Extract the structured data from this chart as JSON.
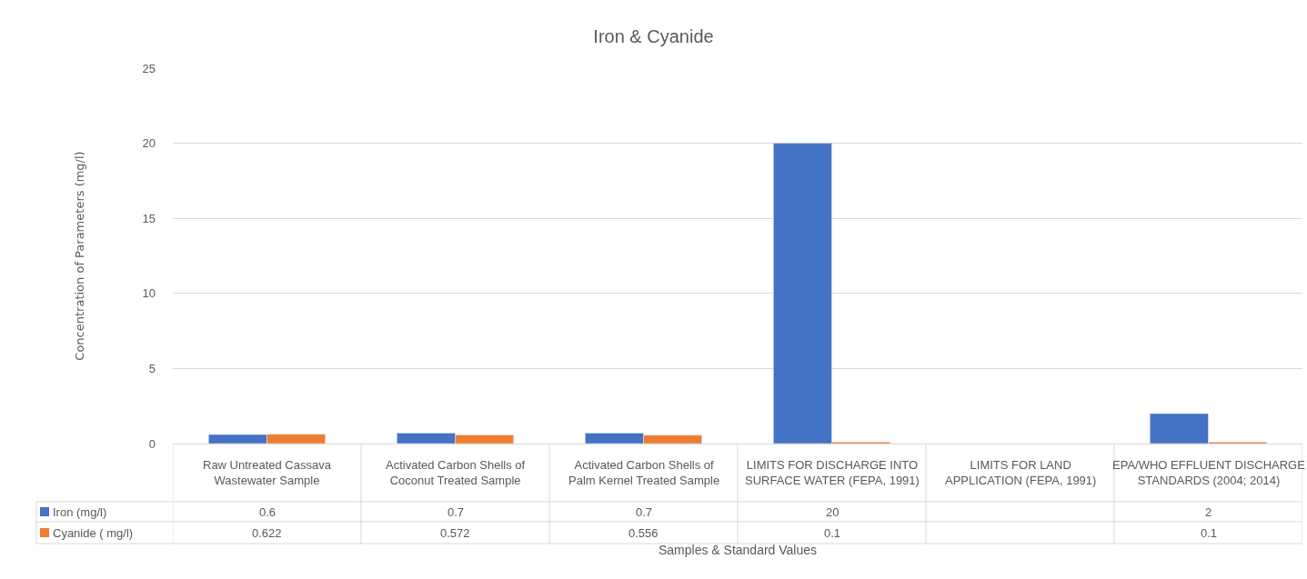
{
  "chart_data": {
    "type": "bar",
    "title": "Iron & Cyanide",
    "xlabel": "Samples & Standard Values",
    "ylabel": "Concentration of Parameters (mg/l)",
    "categories": [
      "Raw Untreated Cassava Wastewater Sample",
      "Activated Carbon Shells of Coconut Treated Sample",
      "Activated Carbon Shells of Palm Kernel Treated Sample",
      "LIMITS FOR DISCHARGE INTO SURFACE WATER (FEPA, 1991)",
      "LIMITS FOR LAND APPLICATION (FEPA, 1991)",
      "EPA/WHO EFFLUENT DISCHARGE STANDARDS (2004; 2014)"
    ],
    "series": [
      {
        "name": "Iron (mg/l)",
        "color": "#4472c4",
        "values": [
          0.6,
          0.7,
          0.7,
          20,
          null,
          2
        ]
      },
      {
        "name": "Cyanide ( mg/l)",
        "color": "#ed7d31",
        "values": [
          0.622,
          0.572,
          0.556,
          0.1,
          null,
          0.1
        ]
      }
    ],
    "ylim": [
      0,
      25
    ],
    "yticks": [
      0,
      5,
      10,
      15,
      20,
      25
    ],
    "grid": "y",
    "legend": "bottom",
    "data_labels": true
  }
}
